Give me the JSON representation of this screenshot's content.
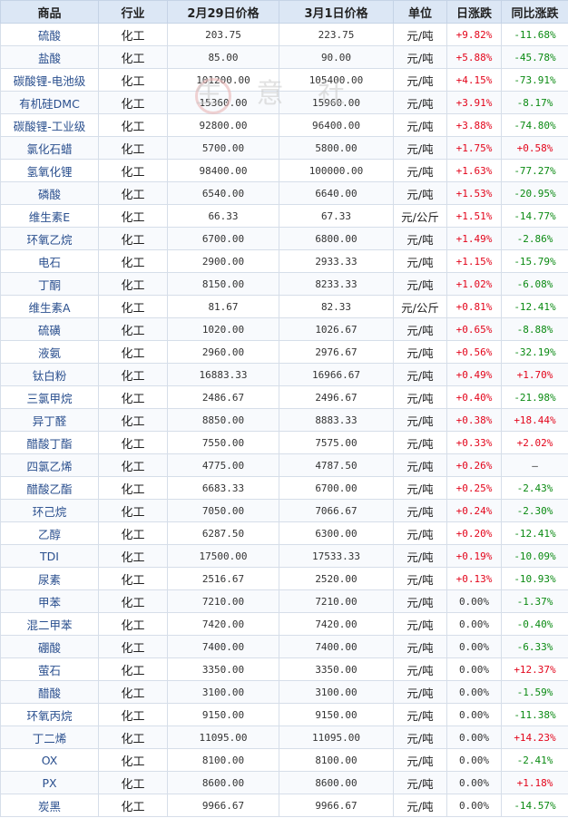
{
  "headers": [
    "商品",
    "行业",
    "2月29日价格",
    "3月1日价格",
    "单位",
    "日涨跌",
    "同比涨跌"
  ],
  "rows": [
    {
      "name": "硫酸",
      "ind": "化工",
      "p1": "203.75",
      "p2": "223.75",
      "unit": "元/吨",
      "day": "+9.82%",
      "yoy": "-11.68%"
    },
    {
      "name": "盐酸",
      "ind": "化工",
      "p1": "85.00",
      "p2": "90.00",
      "unit": "元/吨",
      "day": "+5.88%",
      "yoy": "-45.78%"
    },
    {
      "name": "碳酸锂-电池级",
      "ind": "化工",
      "p1": "101200.00",
      "p2": "105400.00",
      "unit": "元/吨",
      "day": "+4.15%",
      "yoy": "-73.91%"
    },
    {
      "name": "有机硅DMC",
      "ind": "化工",
      "p1": "15360.00",
      "p2": "15960.00",
      "unit": "元/吨",
      "day": "+3.91%",
      "yoy": "-8.17%"
    },
    {
      "name": "碳酸锂-工业级",
      "ind": "化工",
      "p1": "92800.00",
      "p2": "96400.00",
      "unit": "元/吨",
      "day": "+3.88%",
      "yoy": "-74.80%"
    },
    {
      "name": "氯化石蜡",
      "ind": "化工",
      "p1": "5700.00",
      "p2": "5800.00",
      "unit": "元/吨",
      "day": "+1.75%",
      "yoy": "+0.58%"
    },
    {
      "name": "氢氧化锂",
      "ind": "化工",
      "p1": "98400.00",
      "p2": "100000.00",
      "unit": "元/吨",
      "day": "+1.63%",
      "yoy": "-77.27%"
    },
    {
      "name": "磷酸",
      "ind": "化工",
      "p1": "6540.00",
      "p2": "6640.00",
      "unit": "元/吨",
      "day": "+1.53%",
      "yoy": "-20.95%"
    },
    {
      "name": "维生素E",
      "ind": "化工",
      "p1": "66.33",
      "p2": "67.33",
      "unit": "元/公斤",
      "day": "+1.51%",
      "yoy": "-14.77%"
    },
    {
      "name": "环氧乙烷",
      "ind": "化工",
      "p1": "6700.00",
      "p2": "6800.00",
      "unit": "元/吨",
      "day": "+1.49%",
      "yoy": "-2.86%"
    },
    {
      "name": "电石",
      "ind": "化工",
      "p1": "2900.00",
      "p2": "2933.33",
      "unit": "元/吨",
      "day": "+1.15%",
      "yoy": "-15.79%"
    },
    {
      "name": "丁酮",
      "ind": "化工",
      "p1": "8150.00",
      "p2": "8233.33",
      "unit": "元/吨",
      "day": "+1.02%",
      "yoy": "-6.08%"
    },
    {
      "name": "维生素A",
      "ind": "化工",
      "p1": "81.67",
      "p2": "82.33",
      "unit": "元/公斤",
      "day": "+0.81%",
      "yoy": "-12.41%"
    },
    {
      "name": "硫磺",
      "ind": "化工",
      "p1": "1020.00",
      "p2": "1026.67",
      "unit": "元/吨",
      "day": "+0.65%",
      "yoy": "-8.88%"
    },
    {
      "name": "液氨",
      "ind": "化工",
      "p1": "2960.00",
      "p2": "2976.67",
      "unit": "元/吨",
      "day": "+0.56%",
      "yoy": "-32.19%"
    },
    {
      "name": "钛白粉",
      "ind": "化工",
      "p1": "16883.33",
      "p2": "16966.67",
      "unit": "元/吨",
      "day": "+0.49%",
      "yoy": "+1.70%"
    },
    {
      "name": "三氯甲烷",
      "ind": "化工",
      "p1": "2486.67",
      "p2": "2496.67",
      "unit": "元/吨",
      "day": "+0.40%",
      "yoy": "-21.98%"
    },
    {
      "name": "异丁醛",
      "ind": "化工",
      "p1": "8850.00",
      "p2": "8883.33",
      "unit": "元/吨",
      "day": "+0.38%",
      "yoy": "+18.44%"
    },
    {
      "name": "醋酸丁酯",
      "ind": "化工",
      "p1": "7550.00",
      "p2": "7575.00",
      "unit": "元/吨",
      "day": "+0.33%",
      "yoy": "+2.02%"
    },
    {
      "name": "四氯乙烯",
      "ind": "化工",
      "p1": "4775.00",
      "p2": "4787.50",
      "unit": "元/吨",
      "day": "+0.26%",
      "yoy": "—"
    },
    {
      "name": "醋酸乙酯",
      "ind": "化工",
      "p1": "6683.33",
      "p2": "6700.00",
      "unit": "元/吨",
      "day": "+0.25%",
      "yoy": "-2.43%"
    },
    {
      "name": "环己烷",
      "ind": "化工",
      "p1": "7050.00",
      "p2": "7066.67",
      "unit": "元/吨",
      "day": "+0.24%",
      "yoy": "-2.30%"
    },
    {
      "name": "乙醇",
      "ind": "化工",
      "p1": "6287.50",
      "p2": "6300.00",
      "unit": "元/吨",
      "day": "+0.20%",
      "yoy": "-12.41%"
    },
    {
      "name": "TDI",
      "ind": "化工",
      "p1": "17500.00",
      "p2": "17533.33",
      "unit": "元/吨",
      "day": "+0.19%",
      "yoy": "-10.09%"
    },
    {
      "name": "尿素",
      "ind": "化工",
      "p1": "2516.67",
      "p2": "2520.00",
      "unit": "元/吨",
      "day": "+0.13%",
      "yoy": "-10.93%"
    },
    {
      "name": "甲苯",
      "ind": "化工",
      "p1": "7210.00",
      "p2": "7210.00",
      "unit": "元/吨",
      "day": "0.00%",
      "yoy": "-1.37%"
    },
    {
      "name": "混二甲苯",
      "ind": "化工",
      "p1": "7420.00",
      "p2": "7420.00",
      "unit": "元/吨",
      "day": "0.00%",
      "yoy": "-0.40%"
    },
    {
      "name": "硼酸",
      "ind": "化工",
      "p1": "7400.00",
      "p2": "7400.00",
      "unit": "元/吨",
      "day": "0.00%",
      "yoy": "-6.33%"
    },
    {
      "name": "萤石",
      "ind": "化工",
      "p1": "3350.00",
      "p2": "3350.00",
      "unit": "元/吨",
      "day": "0.00%",
      "yoy": "+12.37%"
    },
    {
      "name": "醋酸",
      "ind": "化工",
      "p1": "3100.00",
      "p2": "3100.00",
      "unit": "元/吨",
      "day": "0.00%",
      "yoy": "-1.59%"
    },
    {
      "name": "环氧丙烷",
      "ind": "化工",
      "p1": "9150.00",
      "p2": "9150.00",
      "unit": "元/吨",
      "day": "0.00%",
      "yoy": "-11.38%"
    },
    {
      "name": "丁二烯",
      "ind": "化工",
      "p1": "11095.00",
      "p2": "11095.00",
      "unit": "元/吨",
      "day": "0.00%",
      "yoy": "+14.23%"
    },
    {
      "name": "OX",
      "ind": "化工",
      "p1": "8100.00",
      "p2": "8100.00",
      "unit": "元/吨",
      "day": "0.00%",
      "yoy": "-2.41%"
    },
    {
      "name": "PX",
      "ind": "化工",
      "p1": "8600.00",
      "p2": "8600.00",
      "unit": "元/吨",
      "day": "0.00%",
      "yoy": "+1.18%"
    },
    {
      "name": "炭黑",
      "ind": "化工",
      "p1": "9966.67",
      "p2": "9966.67",
      "unit": "元/吨",
      "day": "0.00%",
      "yoy": "-14.57%"
    }
  ],
  "watermark": "生 意 社",
  "colors": {
    "up": "#e3051b",
    "down": "#0a8a12",
    "header_bg": "#dce7f5",
    "name_text": "#2a4f8e"
  }
}
